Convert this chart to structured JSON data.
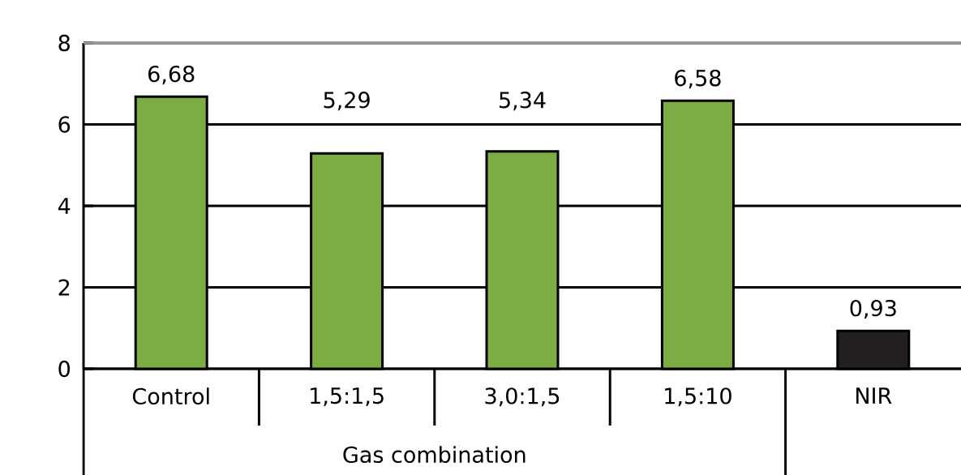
{
  "chart_data": {
    "type": "bar",
    "xlabel": "Gas combination",
    "categories": [
      "Control",
      "1,5:1,5",
      "3,0:1,5",
      "1,5:10",
      "NIR"
    ],
    "values": [
      6.68,
      5.29,
      5.34,
      6.58,
      0.93
    ],
    "colors": [
      "#7cac44",
      "#7cac44",
      "#7cac44",
      "#7cac44",
      "#231f20"
    ],
    "value_labels": [
      "6,68",
      "5,29",
      "5,34",
      "6,58",
      "0,93"
    ],
    "ylim": [
      0,
      8
    ],
    "yticks": [
      0,
      2,
      4,
      6,
      8
    ],
    "grid": "y"
  }
}
